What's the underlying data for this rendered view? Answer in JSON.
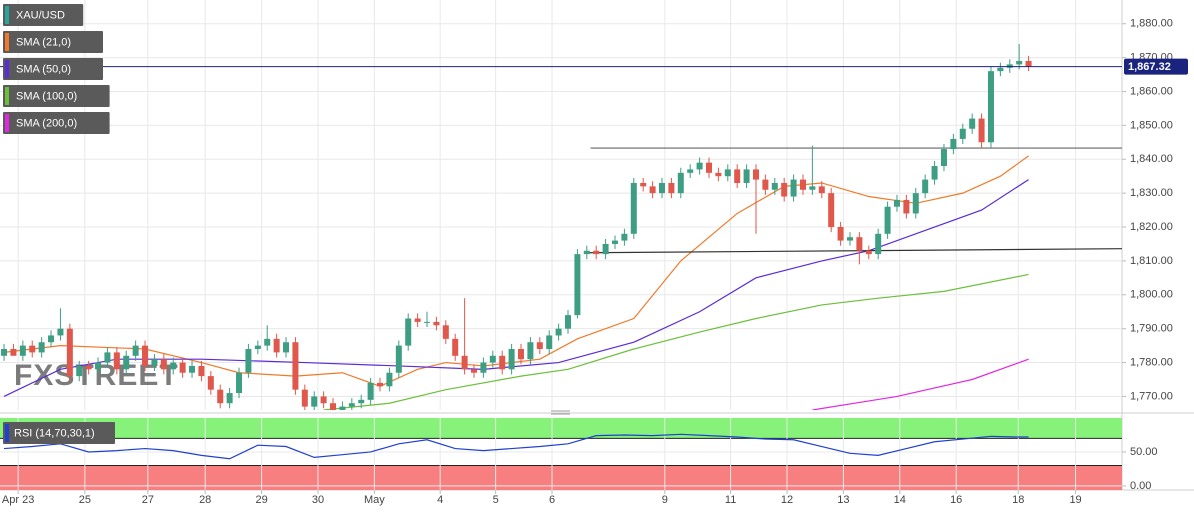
{
  "chart_data": [
    {
      "type": "candlestick",
      "watermark": "FXSTREET",
      "xlim": [
        -0.43,
        118.94
      ],
      "ylim": [
        1766,
        1887
      ],
      "yticks": [
        {
          "value": 1770,
          "label": "1,770.00"
        },
        {
          "value": 1780,
          "label": "1,780.00"
        },
        {
          "value": 1790,
          "label": "1,790.00"
        },
        {
          "value": 1800,
          "label": "1,800.00"
        },
        {
          "value": 1810,
          "label": "1,810.00"
        },
        {
          "value": 1820,
          "label": "1,820.00"
        },
        {
          "value": 1830,
          "label": "1,830.00"
        },
        {
          "value": 1840,
          "label": "1,840.00"
        },
        {
          "value": 1850,
          "label": "1,850.00"
        },
        {
          "value": 1860,
          "label": "1,860.00"
        },
        {
          "value": 1870,
          "label": "1,870.00"
        },
        {
          "value": 1880,
          "label": "1,880.00"
        }
      ],
      "grid": true,
      "last_price": {
        "value": 1867.32,
        "label": "1,867.32",
        "color": "#1a237e"
      },
      "trend_lines": [
        {
          "color": "#666666",
          "x": [
            62.4,
            118.94
          ],
          "values": [
            1843.3,
            1843.3
          ]
        },
        {
          "color": "#333333",
          "x": [
            61.8,
            118.94
          ],
          "values": [
            1812.4,
            1813.6
          ]
        }
      ],
      "series": [
        {
          "name": "XAU/USD",
          "color": "#26a69a",
          "up_color": "#3d9e84",
          "down_color": "#e0574c",
          "x": [
            0,
            1,
            2,
            3,
            4,
            5,
            6,
            7,
            8,
            9,
            10,
            11,
            12,
            13,
            14,
            15,
            16,
            17,
            18,
            19,
            20,
            21,
            22,
            23,
            24,
            25,
            26,
            27,
            28,
            29,
            30,
            31,
            32,
            33,
            34,
            35,
            36,
            37,
            38,
            39,
            40,
            41,
            42,
            43,
            44,
            45,
            46,
            47,
            48,
            49,
            50,
            51,
            52,
            53,
            54,
            55,
            56,
            57,
            58,
            59,
            60,
            61,
            62,
            63,
            64,
            65,
            66,
            67,
            68,
            69,
            70,
            71,
            72,
            73,
            74,
            75,
            76,
            77,
            78,
            79,
            80,
            81,
            82,
            83,
            84,
            85,
            86,
            87,
            88,
            89,
            90,
            91,
            92,
            93,
            94,
            95,
            96,
            97,
            98,
            99,
            100,
            101,
            102,
            103,
            104,
            105,
            106,
            107,
            108,
            109
          ],
          "open": [
            1782,
            1784,
            1782,
            1785,
            1783,
            1786,
            1788,
            1790,
            1776,
            1779,
            1778,
            1780,
            1783,
            1778,
            1782,
            1785,
            1779,
            1781,
            1778,
            1780,
            1777,
            1779,
            1776,
            1772,
            1768,
            1771,
            1777,
            1784,
            1785,
            1787,
            1783,
            1786,
            1772,
            1767,
            1770,
            1768,
            1766,
            1767,
            1768,
            1769,
            1774,
            1773,
            1777,
            1785,
            1793,
            1792,
            1792,
            1791,
            1787,
            1782,
            1778,
            1777,
            1780,
            1782,
            1778,
            1784,
            1781,
            1786,
            1784,
            1788,
            1790,
            1794,
            1812,
            1813,
            1812,
            1815,
            1816,
            1818,
            1833,
            1832,
            1830,
            1833,
            1830,
            1836,
            1837,
            1839,
            1836,
            1835,
            1837,
            1833,
            1837,
            1834,
            1831,
            1833,
            1829,
            1834,
            1831,
            1832,
            1830,
            1820,
            1816,
            1817,
            1813,
            1812,
            1818,
            1826,
            1828,
            1824,
            1830,
            1834,
            1838,
            1843,
            1846,
            1849,
            1852,
            1845,
            1866,
            1867,
            1868,
            1869
          ],
          "high": [
            1785.5,
            1785.5,
            1786.5,
            1786.5,
            1787.5,
            1789.5,
            1796,
            1791.5,
            1780.5,
            1780.5,
            1781.5,
            1784.5,
            1784.5,
            1783.5,
            1786.5,
            1786.5,
            1782.5,
            1782.5,
            1781.5,
            1781.5,
            1780.5,
            1780.5,
            1777.5,
            1773.5,
            1772.5,
            1778.5,
            1785.5,
            1786.5,
            1791,
            1788.5,
            1787.5,
            1787.5,
            1773.5,
            1771.5,
            1771.5,
            1769.5,
            1768.5,
            1769.5,
            1770.5,
            1775.5,
            1775.5,
            1778.5,
            1786.5,
            1794.5,
            1794.5,
            1795,
            1793.5,
            1792.5,
            1788.5,
            1799,
            1779.5,
            1781.5,
            1783.5,
            1783.5,
            1785.5,
            1785.5,
            1787.5,
            1787.5,
            1789.5,
            1791.5,
            1795.5,
            1813.5,
            1814.5,
            1814.5,
            1816.5,
            1817.5,
            1819.5,
            1834.5,
            1834.5,
            1833.5,
            1834.5,
            1834.5,
            1837.5,
            1838.5,
            1840.5,
            1840.5,
            1837.5,
            1838.5,
            1838.5,
            1838.5,
            1838.5,
            1835.5,
            1834.5,
            1834.5,
            1835.5,
            1835.5,
            1844,
            1833.5,
            1831.5,
            1821.5,
            1818.5,
            1818.5,
            1814.5,
            1819.5,
            1827.5,
            1829.5,
            1829.5,
            1831.5,
            1835.5,
            1839.5,
            1844.5,
            1847.5,
            1850.5,
            1853.5,
            1853.5,
            1867.5,
            1868.5,
            1869.5,
            1874,
            1870.5
          ],
          "low": [
            1780.5,
            1782.5,
            1780.5,
            1781.5,
            1781.5,
            1784.5,
            1786.5,
            1774.5,
            1774.5,
            1776.5,
            1776.5,
            1778.5,
            1776.5,
            1776.5,
            1780.5,
            1777.5,
            1777.5,
            1776.5,
            1776.5,
            1775.5,
            1775.5,
            1774.5,
            1770.5,
            1766.5,
            1766.5,
            1769.5,
            1775.5,
            1782.5,
            1783.5,
            1781.5,
            1781.5,
            1770.5,
            1765.5,
            1765.5,
            1766.5,
            1764.5,
            1764.5,
            1765.5,
            1766.5,
            1767.5,
            1771.5,
            1771.5,
            1775.5,
            1783.5,
            1790.5,
            1790.5,
            1789.5,
            1785.5,
            1780.5,
            1776.5,
            1775.5,
            1775.5,
            1778.5,
            1776.5,
            1776.5,
            1779.5,
            1779.5,
            1782.5,
            1782.5,
            1786.5,
            1788.5,
            1793,
            1810.5,
            1810.5,
            1810.5,
            1813.5,
            1814.5,
            1816.5,
            1830.5,
            1828.5,
            1828.5,
            1828.5,
            1828.5,
            1834.5,
            1835.5,
            1834.5,
            1833.5,
            1833.5,
            1831.5,
            1831.5,
            1818,
            1829.5,
            1829.5,
            1827.5,
            1827.5,
            1829.5,
            1829.5,
            1828.5,
            1818.5,
            1814.5,
            1814.5,
            1809,
            1810.5,
            1810.5,
            1816.5,
            1824.5,
            1822.5,
            1822.5,
            1828.5,
            1832.5,
            1836.5,
            1841.5,
            1844.5,
            1847.5,
            1843.5,
            1843.5,
            1864.5,
            1865.5,
            1866.5,
            1866
          ],
          "close": [
            1784,
            1782,
            1785,
            1783,
            1786,
            1788,
            1790,
            1776,
            1779,
            1778,
            1780,
            1783,
            1778,
            1782,
            1785,
            1779,
            1781,
            1778,
            1780,
            1777,
            1779,
            1776,
            1772,
            1768,
            1771,
            1777,
            1784,
            1785,
            1787,
            1783,
            1786,
            1772,
            1767,
            1770,
            1768,
            1766,
            1767,
            1768,
            1769,
            1774,
            1773,
            1777,
            1785,
            1793,
            1792,
            1792,
            1791,
            1787,
            1782,
            1778,
            1777,
            1780,
            1782,
            1778,
            1784,
            1781,
            1786,
            1784,
            1788,
            1790,
            1794,
            1812,
            1813,
            1812,
            1815,
            1816,
            1818,
            1833,
            1832,
            1830,
            1833,
            1830,
            1836,
            1837,
            1839,
            1836,
            1835,
            1837,
            1833,
            1837,
            1834,
            1831,
            1833,
            1829,
            1834,
            1831,
            1832,
            1830,
            1820,
            1816,
            1817,
            1813,
            1812,
            1818,
            1826,
            1828,
            1824,
            1830,
            1834,
            1838,
            1843,
            1846,
            1849,
            1852,
            1845,
            1866,
            1867,
            1868,
            1869,
            1867.32
          ]
        },
        {
          "name": "SMA (21,0)",
          "color": "#f07a2a",
          "x": [
            0,
            6,
            15,
            21,
            25,
            31,
            36,
            40,
            44,
            47,
            51,
            57,
            61,
            67,
            72,
            78,
            83,
            87,
            92,
            97,
            102,
            106,
            109
          ],
          "values": [
            1783,
            1785,
            1784,
            1780,
            1777,
            1776,
            1777,
            1773,
            1778,
            1780,
            1779,
            1781,
            1787,
            1793,
            1810,
            1824,
            1832,
            1833,
            1829,
            1827,
            1830,
            1835,
            1841
          ]
        },
        {
          "name": "SMA (50,0)",
          "color": "#5b2bd6",
          "x": [
            0,
            6,
            12,
            21,
            32,
            42,
            51,
            59,
            67,
            74,
            80,
            87,
            92,
            97,
            104,
            109
          ],
          "values": [
            1770,
            1778,
            1781,
            1781,
            1780,
            1779,
            1778,
            1780,
            1786,
            1795,
            1805,
            1810,
            1813,
            1818,
            1825,
            1834
          ]
        },
        {
          "name": "SMA (100,0)",
          "color": "#6cbf3b",
          "x": [
            34,
            41,
            47,
            55,
            60,
            67,
            74,
            80,
            87,
            93,
            100,
            109
          ],
          "values": [
            1766,
            1768,
            1772,
            1776,
            1778,
            1784,
            1789,
            1793,
            1797,
            1799,
            1801,
            1806
          ]
        },
        {
          "name": "SMA (200,0)",
          "color": "#e226e2",
          "x": [
            86,
            95,
            103,
            109
          ],
          "values": [
            1766,
            1770,
            1775,
            1781
          ]
        }
      ]
    },
    {
      "type": "line",
      "title": "RSI (14,70,30,1)",
      "overbought": 70,
      "oversold": 30,
      "overbought_color": "#86f27a",
      "oversold_color": "#f77f7f",
      "xlim": [
        -0.43,
        118.94
      ],
      "ylim": [
        -6,
        100
      ],
      "yticks": [
        {
          "value": 0,
          "label": "0.00"
        },
        {
          "value": 50,
          "label": "50.00"
        }
      ],
      "xticks": [
        {
          "value": 1.5,
          "label": "Apr 23"
        },
        {
          "value": 8.6,
          "label": "25"
        },
        {
          "value": 15.3,
          "label": "27"
        },
        {
          "value": 21.4,
          "label": "28"
        },
        {
          "value": 27.4,
          "label": "29"
        },
        {
          "value": 33.4,
          "label": "30"
        },
        {
          "value": 39.4,
          "label": "May"
        },
        {
          "value": 46.4,
          "label": "4"
        },
        {
          "value": 52.3,
          "label": "5"
        },
        {
          "value": 58.3,
          "label": "6"
        },
        {
          "value": 70.3,
          "label": "9"
        },
        {
          "value": 77.3,
          "label": "11"
        },
        {
          "value": 83.3,
          "label": "12"
        },
        {
          "value": 89.3,
          "label": "13"
        },
        {
          "value": 95.3,
          "label": "14"
        },
        {
          "value": 101.3,
          "label": "16"
        },
        {
          "value": 107.9,
          "label": "18"
        },
        {
          "value": 114,
          "label": "19"
        }
      ],
      "series": [
        {
          "color": "#2040d0",
          "x": [
            0,
            3,
            6,
            9,
            12,
            15,
            18,
            21,
            24,
            27,
            30,
            33,
            36,
            39,
            42,
            45,
            48,
            51,
            54,
            57,
            60,
            63,
            66,
            69,
            72,
            75,
            78,
            81,
            84,
            87,
            90,
            93,
            96,
            99,
            102,
            105,
            108,
            109
          ],
          "values": [
            55,
            58,
            62,
            50,
            52,
            55,
            52,
            45,
            40,
            60,
            58,
            42,
            46,
            50,
            62,
            68,
            55,
            52,
            55,
            58,
            62,
            74,
            75,
            74,
            76,
            74,
            72,
            69,
            68,
            58,
            48,
            45,
            55,
            65,
            69,
            73,
            72,
            72
          ]
        }
      ]
    }
  ]
}
